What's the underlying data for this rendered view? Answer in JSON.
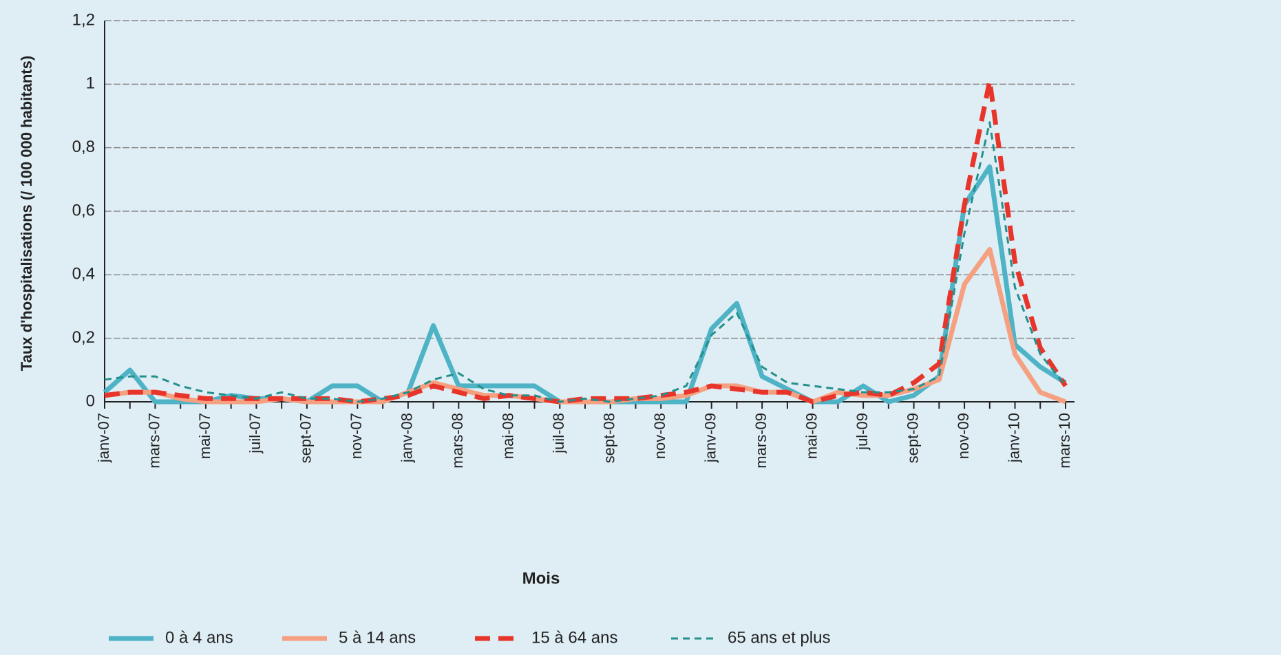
{
  "chart_data": {
    "type": "line",
    "y_label": "Taux d'hospitalisations (/ 100 000 habitants)",
    "x_label": "Mois",
    "categories": [
      "janv-07",
      null,
      "mars-07",
      null,
      "mai-07",
      null,
      "juil-07",
      null,
      "sept-07",
      null,
      "nov-07",
      null,
      "janv-08",
      null,
      "mars-08",
      null,
      "mai-08",
      null,
      "juil-08",
      null,
      "sept-08",
      null,
      "nov-08",
      null,
      "janv-09",
      null,
      "mars-09",
      null,
      "mai-09",
      null,
      "jul-09",
      null,
      "sept-09",
      null,
      "nov-09",
      null,
      "janv-10",
      null,
      "mars-10"
    ],
    "series": [
      {
        "name": "0 à 4 ans",
        "color": "#4fb3c6",
        "dash": "solid",
        "width": 7,
        "values": [
          0.03,
          0.1,
          0.0,
          0.0,
          0.0,
          0.02,
          0.01,
          0.01,
          0.0,
          0.05,
          0.05,
          0.0,
          0.03,
          0.24,
          0.05,
          0.05,
          0.05,
          0.05,
          0.0,
          0.0,
          0.0,
          0.0,
          0.0,
          0.0,
          0.23,
          0.31,
          0.08,
          0.04,
          0.0,
          0.0,
          0.05,
          0.0,
          0.02,
          0.08,
          0.62,
          0.74,
          0.18,
          0.11,
          0.06
        ]
      },
      {
        "name": "5 à 14 ans",
        "color": "#f5a081",
        "dash": "solid",
        "width": 7,
        "values": [
          0.02,
          0.03,
          0.03,
          0.01,
          0.0,
          0.0,
          0.0,
          0.01,
          0.0,
          0.0,
          0.0,
          0.0,
          0.03,
          0.06,
          0.04,
          0.02,
          0.02,
          0.01,
          0.0,
          0.0,
          0.0,
          0.01,
          0.01,
          0.02,
          0.05,
          0.05,
          0.03,
          0.03,
          0.0,
          0.03,
          0.02,
          0.02,
          0.04,
          0.07,
          0.37,
          0.48,
          0.15,
          0.03,
          0.0
        ]
      },
      {
        "name": "15 à 64 ans",
        "color": "#e8352b",
        "dash": "dashed",
        "width": 7,
        "values": [
          0.02,
          0.03,
          0.03,
          0.02,
          0.01,
          0.01,
          0.01,
          0.01,
          0.01,
          0.01,
          0.0,
          0.01,
          0.02,
          0.05,
          0.03,
          0.01,
          0.02,
          0.01,
          0.0,
          0.01,
          0.01,
          0.01,
          0.02,
          0.03,
          0.05,
          0.04,
          0.03,
          0.03,
          0.0,
          0.02,
          0.03,
          0.02,
          0.06,
          0.12,
          0.62,
          1.01,
          0.44,
          0.17,
          0.05
        ]
      },
      {
        "name": "65 ans et plus",
        "color": "#23908c",
        "dash": "dotted",
        "width": 3,
        "values": [
          0.07,
          0.08,
          0.08,
          0.05,
          0.03,
          0.02,
          0.01,
          0.03,
          0.01,
          0.01,
          0.0,
          0.01,
          0.03,
          0.07,
          0.09,
          0.04,
          0.02,
          0.02,
          0.0,
          0.01,
          0.0,
          0.01,
          0.02,
          0.05,
          0.21,
          0.28,
          0.11,
          0.06,
          0.05,
          0.04,
          0.03,
          0.03,
          0.04,
          0.08,
          0.53,
          0.88,
          0.36,
          0.15,
          0.05
        ]
      }
    ],
    "ylim": [
      0,
      1.2
    ],
    "yticks": [
      0,
      {
        "value": 0.2,
        "label": "0,2"
      },
      {
        "value": 0.4,
        "label": "0,4"
      },
      {
        "value": 0.6,
        "label": "0,6"
      },
      {
        "value": 0.8,
        "label": "0,8"
      },
      1,
      {
        "value": 1.2,
        "label": "1,2"
      }
    ],
    "grid": true,
    "legend": "bottom"
  }
}
